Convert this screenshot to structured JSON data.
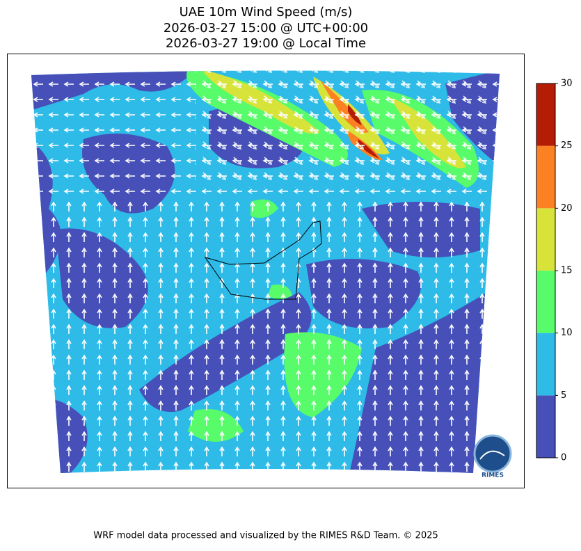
{
  "header": {
    "title": [
      "UAE 10m Wind Speed (m/s)",
      "2026-03-27 15:00 @ UTC+00:00",
      "2026-03-27 19:00 @ Local Time"
    ]
  },
  "colorbar": {
    "bins": [
      0,
      5,
      10,
      15,
      20,
      25,
      30
    ],
    "colors": [
      "#4650b8",
      "#2ebbe8",
      "#58fb6a",
      "#d8e33a",
      "#fc8123",
      "#b51c05"
    ]
  },
  "logo": "RIMES",
  "footer": "WRF model data processed and visualized by the RIMES R&D Team. © 2025"
}
